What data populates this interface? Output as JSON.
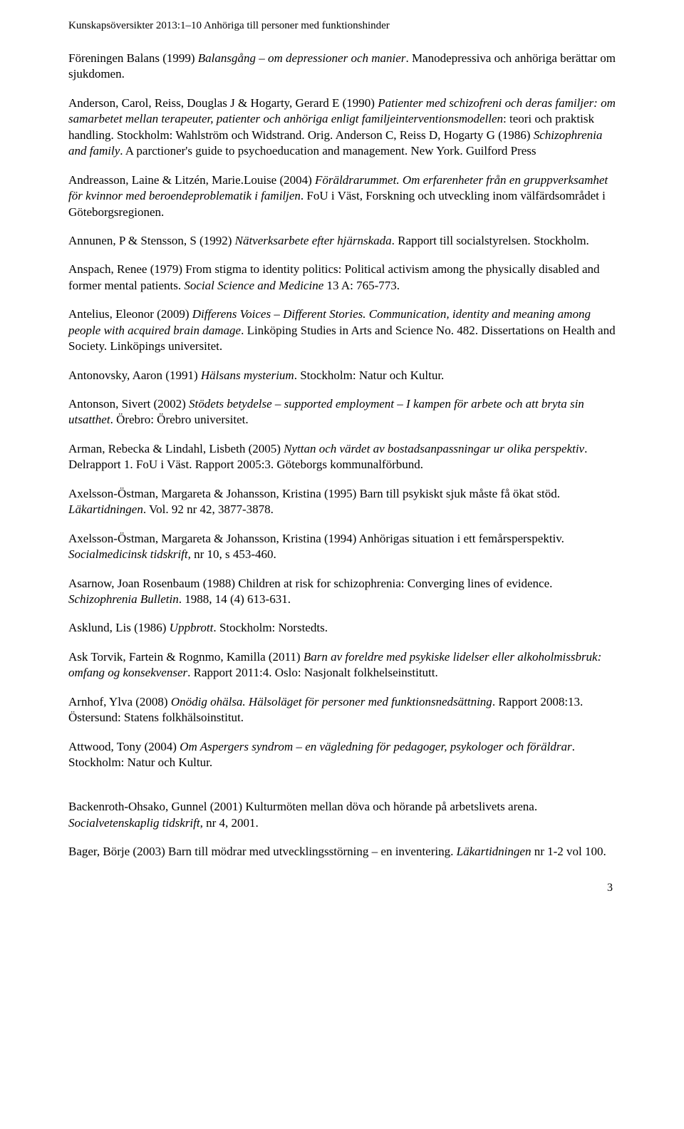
{
  "header": "Kunskapsöversikter 2013:1–10 Anhöriga till personer med funktionshinder",
  "entries": [
    {
      "parts": [
        {
          "t": "Föreningen Balans (1999) ",
          "i": false
        },
        {
          "t": "Balansgång – om depressioner och manier",
          "i": true
        },
        {
          "t": ". Manodepressiva och anhöriga berättar om sjukdomen.",
          "i": false
        }
      ]
    },
    {
      "parts": [
        {
          "t": "Anderson, Carol, Reiss, Douglas J & Hogarty, Gerard E (1990) ",
          "i": false
        },
        {
          "t": "Patienter med schizofreni och deras familjer: om samarbetet mellan terapeuter, patienter och anhöriga enligt familjeinterventionsmodellen",
          "i": true
        },
        {
          "t": ": teori och praktisk handling. Stockholm: Wahlström och Widstrand. Orig. Anderson C, Reiss D, Hogarty G (1986) ",
          "i": false
        },
        {
          "t": "Schizophrenia and family",
          "i": true
        },
        {
          "t": ". A parctioner's guide to psychoeducation and management. New York. Guilford Press",
          "i": false
        }
      ]
    },
    {
      "parts": [
        {
          "t": "Andreasson, Laine & Litzén, Marie.Louise (2004) ",
          "i": false
        },
        {
          "t": "Föräldrarummet. Om erfarenheter från en gruppverksamhet för kvinnor med beroendeproblematik i familjen",
          "i": true
        },
        {
          "t": ". FoU i Väst, Forskning och utveckling inom välfärdsområdet i Göteborgsregionen.",
          "i": false
        }
      ]
    },
    {
      "parts": [
        {
          "t": "Annunen, P & Stensson, S (1992) ",
          "i": false
        },
        {
          "t": "Nätverksarbete efter hjärnskada",
          "i": true
        },
        {
          "t": ". Rapport till socialstyrelsen. Stockholm.",
          "i": false
        }
      ]
    },
    {
      "parts": [
        {
          "t": "Anspach, Renee (1979) From stigma to identity politics: Political activism among the physically disabled and former mental patients. ",
          "i": false
        },
        {
          "t": "Social Science and Medicine",
          "i": true
        },
        {
          "t": " 13 A: 765-773.",
          "i": false
        }
      ]
    },
    {
      "parts": [
        {
          "t": "Antelius, Eleonor (2009) ",
          "i": false
        },
        {
          "t": "Differens Voices – Different Stories. Communication, identity and meaning among people with acquired brain damage",
          "i": true
        },
        {
          "t": ". Linköping Studies in Arts and Science No. 482. Dissertations on Health and Society. Linköpings universitet.",
          "i": false
        }
      ]
    },
    {
      "parts": [
        {
          "t": "Antonovsky, Aaron (1991) ",
          "i": false
        },
        {
          "t": "Hälsans mysterium",
          "i": true
        },
        {
          "t": ". Stockholm: Natur och Kultur.",
          "i": false
        }
      ]
    },
    {
      "parts": [
        {
          "t": "Antonson, Sivert (2002) ",
          "i": false
        },
        {
          "t": "Stödets betydelse – supported employment – I kampen för arbete och att bryta sin utsatthet",
          "i": true
        },
        {
          "t": ". Örebro: Örebro universitet.",
          "i": false
        }
      ]
    },
    {
      "parts": [
        {
          "t": "Arman, Rebecka & Lindahl, Lisbeth (2005) ",
          "i": false
        },
        {
          "t": "Nyttan och värdet av bostadsanpassningar ur olika perspektiv",
          "i": true
        },
        {
          "t": ". Delrapport 1. FoU i Väst. Rapport 2005:3. Göteborgs kommunalförbund.",
          "i": false
        }
      ]
    },
    {
      "parts": [
        {
          "t": "Axelsson-Östman, Margareta & Johansson, Kristina (1995) Barn till psykiskt sjuk måste få ökat stöd. ",
          "i": false
        },
        {
          "t": "Läkartidningen",
          "i": true
        },
        {
          "t": ". Vol. 92 nr 42, 3877-3878.",
          "i": false
        }
      ]
    },
    {
      "parts": [
        {
          "t": "Axelsson-Östman, Margareta & Johansson, Kristina (1994) Anhörigas situation i ett femårsperspektiv. ",
          "i": false
        },
        {
          "t": "Socialmedicinsk tidskrift,",
          "i": true
        },
        {
          "t": " nr 10, s 453-460.",
          "i": false
        }
      ]
    },
    {
      "parts": [
        {
          "t": "Asarnow, Joan Rosenbaum (1988) Children at risk for schizophrenia: Converging lines of evidence. ",
          "i": false
        },
        {
          "t": "Schizophrenia Bulletin",
          "i": true
        },
        {
          "t": ". 1988, 14 (4) 613-631.",
          "i": false
        }
      ]
    },
    {
      "parts": [
        {
          "t": "Asklund, Lis (1986) ",
          "i": false
        },
        {
          "t": "Uppbrott",
          "i": true
        },
        {
          "t": ". Stockholm: Norstedts.",
          "i": false
        }
      ]
    },
    {
      "parts": [
        {
          "t": "Ask Torvik, Fartein & Rognmo, Kamilla (2011) ",
          "i": false
        },
        {
          "t": "Barn av foreldre med psykiske lidelser eller alkoholmissbruk: omfang og konsekvenser",
          "i": true
        },
        {
          "t": ". Rapport 2011:4. Oslo: Nasjonalt folkhelseinstitutt.",
          "i": false
        }
      ]
    },
    {
      "parts": [
        {
          "t": "Arnhof, Ylva (2008) ",
          "i": false
        },
        {
          "t": "Onödig ohälsa. Hälsoläget för personer med funktionsnedsättning",
          "i": true
        },
        {
          "t": ". Rapport 2008:13. Östersund: Statens folkhälsoinstitut.",
          "i": false
        }
      ]
    },
    {
      "parts": [
        {
          "t": "Attwood, Tony (2004) ",
          "i": false
        },
        {
          "t": "Om Aspergers syndrom – en vägledning för pedagoger, psykologer och föräldrar",
          "i": true
        },
        {
          "t": ". Stockholm: Natur och Kultur.",
          "i": false
        }
      ]
    },
    {
      "parts": [
        {
          "t": "Backenroth-Ohsako, Gunnel (2001) Kulturmöten mellan döva och hörande på arbetslivets arena. ",
          "i": false
        },
        {
          "t": "Socialvetenskaplig tidskrift",
          "i": true
        },
        {
          "t": ", nr 4, 2001.",
          "i": false
        }
      ]
    },
    {
      "parts": [
        {
          "t": "Bager, Börje (2003) Barn till mödrar med utvecklingsstörning – en inventering. ",
          "i": false
        },
        {
          "t": "Läkartidningen",
          "i": true
        },
        {
          "t": " nr 1-2 vol 100.",
          "i": false
        }
      ]
    }
  ],
  "gapBefore": 16,
  "pageNumber": "3"
}
